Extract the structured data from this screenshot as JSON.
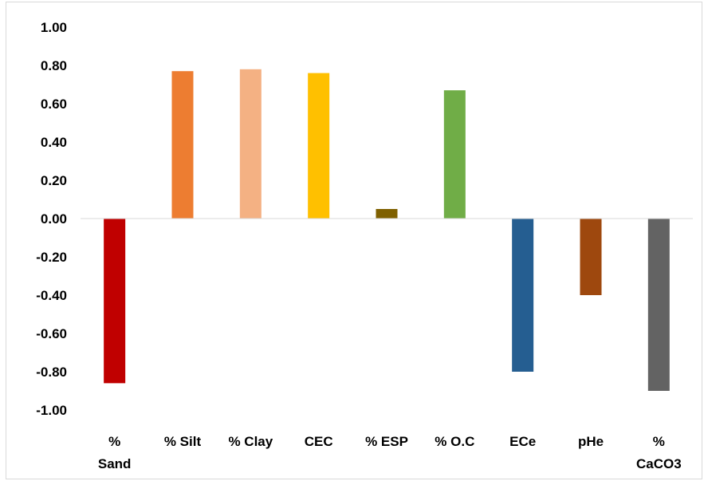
{
  "chart_data": {
    "type": "bar",
    "title": "",
    "xlabel": "",
    "ylabel": "",
    "ylim": [
      -1.0,
      1.0
    ],
    "y_ticks": [
      "1.00",
      "0.80",
      "0.60",
      "0.40",
      "0.20",
      "0.00",
      "-0.20",
      "-0.40",
      "-0.60",
      "-0.80",
      "-1.00"
    ],
    "grid": false,
    "legend": "none",
    "categories": [
      [
        "%",
        "Sand"
      ],
      [
        "% Silt"
      ],
      [
        "% Clay"
      ],
      [
        "CEC"
      ],
      [
        "% ESP"
      ],
      [
        "% O.C"
      ],
      [
        "ECe"
      ],
      [
        "pHe"
      ],
      [
        "%",
        "CaCO3"
      ]
    ],
    "values": [
      -0.86,
      0.77,
      0.78,
      0.76,
      0.05,
      0.67,
      -0.8,
      -0.4,
      -0.9
    ],
    "colors": [
      "#C00000",
      "#ED7D31",
      "#F4B183",
      "#FFC000",
      "#7F6000",
      "#70AD47",
      "#255E91",
      "#9E480E",
      "#636363"
    ]
  }
}
